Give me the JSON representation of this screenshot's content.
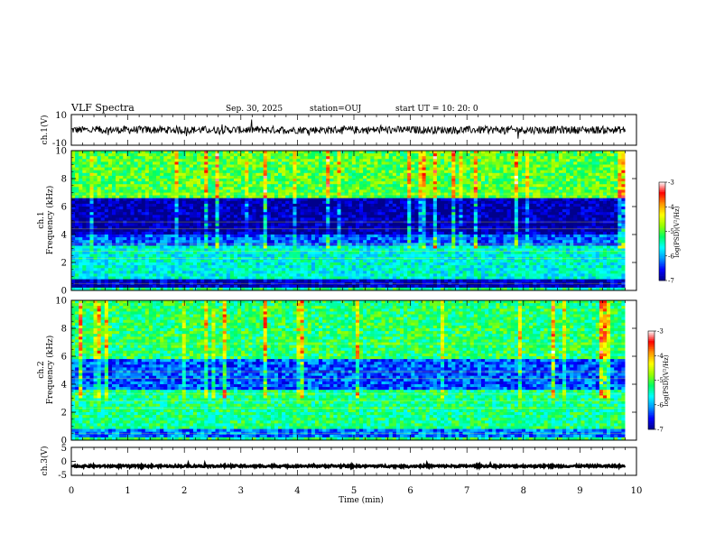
{
  "header": {
    "title": "VLF Spectra",
    "date": "Sep. 30, 2025",
    "station": "station=OUJ",
    "start": "start  UT =   10: 20: 0"
  },
  "chart_data": [
    {
      "type": "line",
      "name_id": "ch1-waveform",
      "ylabel": "ch.1(V)",
      "ylim": [
        -10,
        10
      ],
      "yticks": [
        "10",
        "-10"
      ],
      "x_range_min": [
        0,
        9.8
      ],
      "baseline": 0,
      "noise_amplitude": 2.5
    },
    {
      "type": "heatmap",
      "name_id": "ch1-spectrogram",
      "ylabel_top": "ch.1",
      "ylabel": "Frequency (kHz)",
      "ylim": [
        0,
        10
      ],
      "yticks": [
        "0",
        "2",
        "4",
        "6",
        "8",
        "10"
      ],
      "x_range_min": [
        0,
        9.8
      ],
      "bands_khz_logpsd": [
        {
          "f": [
            0.0,
            0.3
          ],
          "v": -5.3
        },
        {
          "f": [
            0.3,
            0.8
          ],
          "v": -6.8
        },
        {
          "f": [
            0.8,
            3.3
          ],
          "v": -5.6
        },
        {
          "f": [
            3.3,
            4.0
          ],
          "v": -6.3
        },
        {
          "f": [
            4.0,
            6.6
          ],
          "v": -6.9
        },
        {
          "f": [
            6.6,
            10.0
          ],
          "v": -5.0
        }
      ],
      "colorbar": {
        "label": "log(PSD)(V²/Hz)",
        "range": [
          -7,
          -3
        ],
        "ticks": [
          "-3",
          "-4",
          "-5",
          "-6",
          "-7"
        ]
      }
    },
    {
      "type": "heatmap",
      "name_id": "ch2-spectrogram",
      "ylabel_top": "ch.2",
      "ylabel": "Frequency (kHz)",
      "ylim": [
        0,
        10
      ],
      "yticks": [
        "0",
        "2",
        "4",
        "6",
        "8",
        "10"
      ],
      "x_range_min": [
        0,
        9.8
      ],
      "bands_khz_logpsd": [
        {
          "f": [
            0.0,
            0.3
          ],
          "v": -5.3
        },
        {
          "f": [
            0.3,
            0.8
          ],
          "v": -6.2
        },
        {
          "f": [
            0.8,
            3.6
          ],
          "v": -5.3
        },
        {
          "f": [
            3.6,
            5.8
          ],
          "v": -6.3
        },
        {
          "f": [
            5.8,
            10.0
          ],
          "v": -5.2
        }
      ],
      "colorbar": {
        "label": "log(PSD)(V²/Hz)",
        "range": [
          -7,
          -3
        ],
        "ticks": [
          "-3",
          "-4",
          "-5",
          "-6",
          "-7"
        ]
      }
    },
    {
      "type": "line",
      "name_id": "ch3-waveform",
      "ylabel": "ch.3(V)",
      "ylim": [
        -5,
        5
      ],
      "yticks": [
        "5",
        "0",
        "-5"
      ],
      "x_range_min": [
        0,
        9.8
      ],
      "baseline": -1.7,
      "noise_amplitude": 0.35
    }
  ],
  "x_axis": {
    "label": "Time (min)",
    "range": [
      0,
      10
    ],
    "ticks": [
      "0",
      "1",
      "2",
      "3",
      "4",
      "5",
      "6",
      "7",
      "8",
      "9",
      "10"
    ]
  },
  "colors": {
    "colormap": [
      "#00008c",
      "#0000ff",
      "#0096ff",
      "#00ffff",
      "#00ff64",
      "#96ff00",
      "#ffff00",
      "#ff9600",
      "#ff0000",
      "#ffffff"
    ]
  }
}
